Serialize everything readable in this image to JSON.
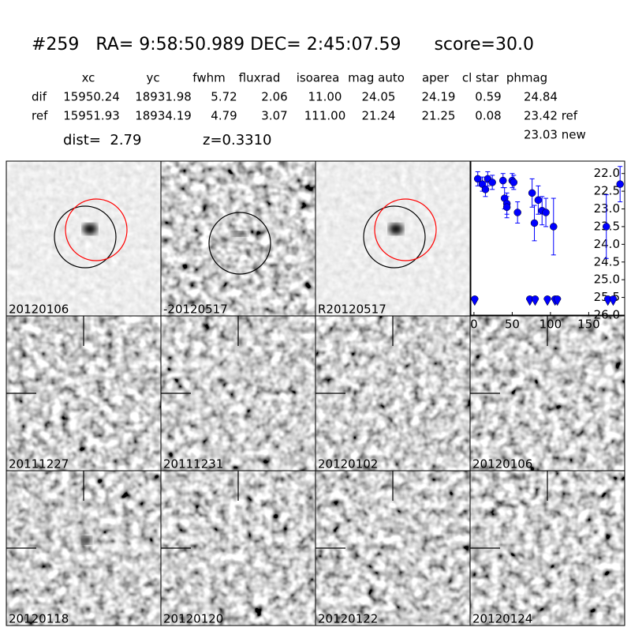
{
  "header": {
    "title": "#259   RA= 9:58:50.989 DEC= 2:45:07.59      score=30.0"
  },
  "table": {
    "columns": [
      "xc",
      "yc",
      "fwhm",
      "fluxrad",
      "isoarea",
      "mag auto",
      "aper",
      "cl star",
      "phmag"
    ],
    "rows": [
      {
        "label": "dif",
        "cells": [
          "15950.24",
          "18931.98",
          "5.72",
          "2.06",
          "11.00",
          "24.05",
          "24.19",
          "0.59",
          "24.84"
        ]
      },
      {
        "label": "ref",
        "cells": [
          "15951.93",
          "18934.19",
          "4.79",
          "3.07",
          "111.00",
          "21.24",
          "21.25",
          "0.08",
          "23.42 ref"
        ]
      }
    ],
    "extra": "23.03 new"
  },
  "dist": "dist=  2.79",
  "redshift": "z=0.3310",
  "stamps": [
    {
      "label": "20120106"
    },
    {
      "label": "-20120517"
    },
    {
      "label": "R20120517"
    },
    {
      "label": "20111227"
    },
    {
      "label": "20111231"
    },
    {
      "label": "20120102"
    },
    {
      "label": "20120106",
      "color": "#ff0000"
    },
    {
      "label": "20120118"
    },
    {
      "label": "20120120"
    },
    {
      "label": "20120122"
    },
    {
      "label": "20120124"
    }
  ],
  "chart_data": {
    "type": "errorbar",
    "color": "#0000ff",
    "xlim": [
      -4,
      197
    ],
    "ylim": [
      26.0,
      21.65
    ],
    "xticks": [
      0,
      50,
      100,
      150
    ],
    "yticks": [
      {
        "value": 22,
        "label": "22.0"
      },
      {
        "value": 22.5,
        "label": "22.5"
      },
      {
        "value": 23,
        "label": "23.0"
      },
      {
        "value": 23.5,
        "label": "23.5"
      },
      {
        "value": 24,
        "label": "24.0"
      },
      {
        "value": 24.5,
        "label": "24.5"
      },
      {
        "value": 25,
        "label": "25.0"
      },
      {
        "value": 25.5,
        "label": "25.5"
      },
      {
        "value": 26,
        "label": "26.0"
      }
    ],
    "points": {
      "x": [
        5,
        11,
        15,
        18,
        24,
        38,
        40,
        43,
        43,
        50,
        52,
        57,
        76,
        79,
        84,
        89,
        94,
        104,
        173,
        191
      ],
      "y": [
        22.15,
        22.3,
        22.45,
        22.15,
        22.25,
        22.2,
        22.7,
        22.85,
        22.95,
        22.2,
        22.25,
        23.1,
        22.55,
        23.4,
        22.75,
        23.05,
        23.1,
        23.5,
        23.5,
        22.3
      ],
      "yerr": [
        0.2,
        0.2,
        0.2,
        0.2,
        0.2,
        0.2,
        0.3,
        0.3,
        0.3,
        0.2,
        0.2,
        0.3,
        0.4,
        0.5,
        0.4,
        0.4,
        0.4,
        0.8,
        0.9,
        0.5
      ]
    },
    "limits": {
      "x": [
        1,
        73,
        80,
        96,
        106,
        109,
        175,
        182
      ],
      "y": [
        25.55,
        25.55,
        25.55,
        25.55,
        25.55,
        25.55,
        25.55,
        25.55
      ]
    }
  }
}
